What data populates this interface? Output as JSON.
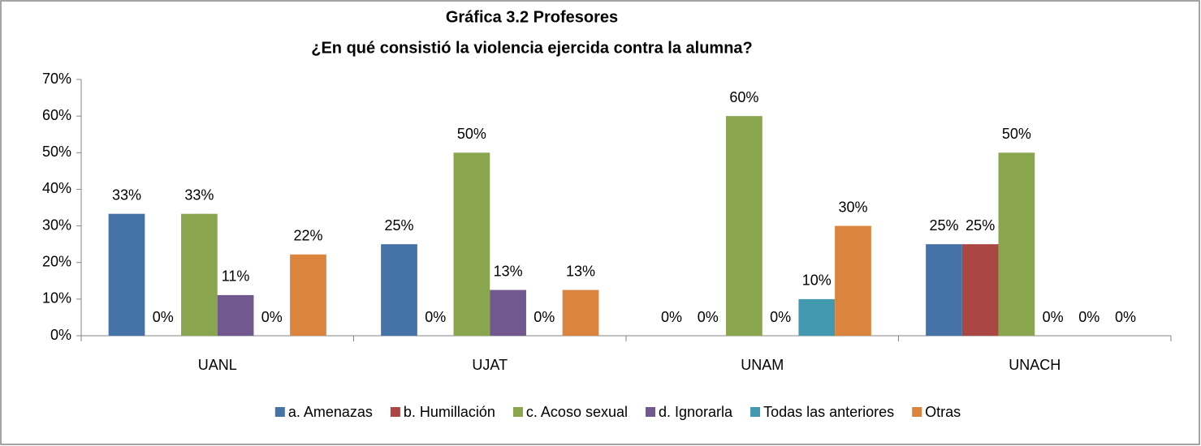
{
  "chart_data": {
    "type": "bar",
    "title": "Gráfica 3.2 Profesores",
    "subtitle": "¿En qué consistió la violencia ejercida contra la alumna?",
    "categories": [
      "UANL",
      "UJAT",
      "UNAM",
      "UNACH"
    ],
    "series": [
      {
        "name": "a. Amenazas",
        "color": "#4572a7",
        "values": [
          33.3,
          25,
          0,
          25
        ],
        "value_labels": [
          "33%",
          "25%",
          "0%",
          "25%"
        ]
      },
      {
        "name": "b. Humillación",
        "color": "#aa4643",
        "values": [
          0,
          0,
          0,
          25
        ],
        "value_labels": [
          "0%",
          "0%",
          "0%",
          "25%"
        ]
      },
      {
        "name": "c. Acoso sexual",
        "color": "#89a54e",
        "values": [
          33.3,
          50,
          60,
          50
        ],
        "value_labels": [
          "33%",
          "50%",
          "60%",
          "50%"
        ]
      },
      {
        "name": "d. Ignorarla",
        "color": "#71588f",
        "values": [
          11.1,
          12.5,
          0,
          0
        ],
        "value_labels": [
          "11%",
          "13%",
          "0%",
          "0%"
        ]
      },
      {
        "name": "Todas las anteriores",
        "color": "#4198af",
        "values": [
          0,
          0,
          10,
          0
        ],
        "value_labels": [
          "0%",
          "0%",
          "10%",
          "0%"
        ]
      },
      {
        "name": "Otras",
        "color": "#db843d",
        "values": [
          22.2,
          12.5,
          30,
          0
        ],
        "value_labels": [
          "22%",
          "13%",
          "30%",
          "0%"
        ]
      }
    ],
    "ylim": [
      0,
      70
    ],
    "yticks": [
      {
        "value": 0,
        "label": "0%"
      },
      {
        "value": 10,
        "label": "10%"
      },
      {
        "value": 20,
        "label": "20%"
      },
      {
        "value": 30,
        "label": "30%"
      },
      {
        "value": 40,
        "label": "40%"
      },
      {
        "value": 50,
        "label": "50%"
      },
      {
        "value": 60,
        "label": "60%"
      },
      {
        "value": 70,
        "label": "70%"
      }
    ],
    "grid": false,
    "legend": "bottom"
  }
}
